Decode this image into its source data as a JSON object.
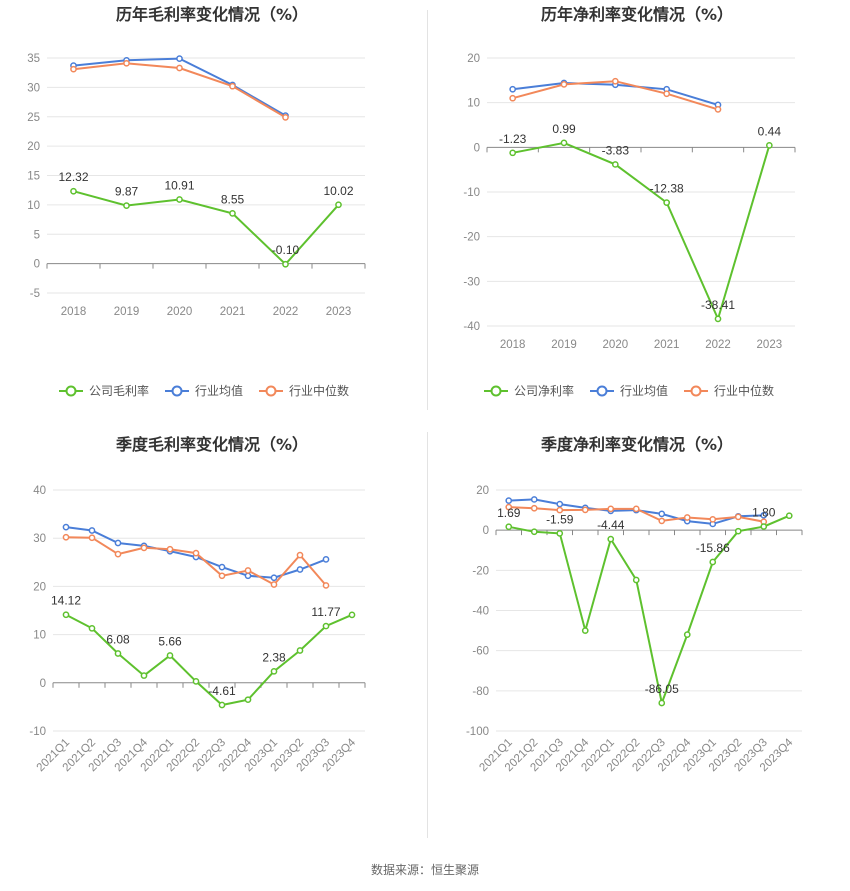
{
  "source": "数据来源：恒生聚源",
  "colors": {
    "company": "#5ec12e",
    "avg": "#4a7ed8",
    "median": "#f2885a"
  },
  "chart_data": [
    {
      "id": "annual-gross",
      "type": "line",
      "title": "历年毛利率变化情况（%）",
      "categories": [
        "2018",
        "2019",
        "2020",
        "2021",
        "2022",
        "2023"
      ],
      "ylim": [
        -5,
        35
      ],
      "yticks": [
        -5,
        0,
        5,
        10,
        15,
        20,
        25,
        30,
        35
      ],
      "rotate_x": false,
      "series": [
        {
          "name": "公司毛利率",
          "key": "company",
          "values": [
            12.32,
            9.87,
            10.91,
            8.55,
            -0.1,
            10.02
          ]
        },
        {
          "name": "行业均值",
          "key": "avg",
          "values": [
            33.7,
            34.6,
            34.9,
            30.4,
            25.2,
            null
          ]
        },
        {
          "name": "行业中位数",
          "key": "median",
          "values": [
            33.1,
            34.1,
            33.3,
            30.2,
            24.9,
            null
          ]
        }
      ],
      "labels": [
        "12.32",
        "9.87",
        "10.91",
        "8.55",
        "-0.10",
        "10.02"
      ]
    },
    {
      "id": "annual-net",
      "type": "line",
      "title": "历年净利率变化情况（%）",
      "categories": [
        "2018",
        "2019",
        "2020",
        "2021",
        "2022",
        "2023"
      ],
      "ylim": [
        -40,
        20
      ],
      "yticks": [
        -40,
        -30,
        -20,
        -10,
        0,
        10,
        20
      ],
      "rotate_x": false,
      "series": [
        {
          "name": "公司净利率",
          "key": "company",
          "values": [
            -1.23,
            0.99,
            -3.83,
            -12.38,
            -38.41,
            0.44
          ]
        },
        {
          "name": "行业均值",
          "key": "avg",
          "values": [
            13.0,
            14.4,
            14.0,
            13.0,
            9.5,
            null
          ]
        },
        {
          "name": "行业中位数",
          "key": "median",
          "values": [
            11.0,
            14.1,
            14.8,
            12.0,
            8.5,
            null
          ]
        }
      ],
      "labels": [
        "-1.23",
        "0.99",
        "-3.83",
        "-12.38",
        "-38.41",
        "0.44"
      ]
    },
    {
      "id": "quarterly-gross",
      "type": "line",
      "title": "季度毛利率变化情况（%）",
      "categories": [
        "2021Q1",
        "2021Q2",
        "2021Q3",
        "2021Q4",
        "2022Q1",
        "2022Q2",
        "2022Q3",
        "2022Q4",
        "2023Q1",
        "2023Q2",
        "2023Q3",
        "2023Q4"
      ],
      "ylim": [
        -10,
        40
      ],
      "yticks": [
        -10,
        0,
        10,
        20,
        30,
        40
      ],
      "rotate_x": true,
      "series": [
        {
          "name": "公司毛利率",
          "key": "company",
          "values": [
            14.12,
            11.3,
            6.08,
            1.5,
            5.66,
            0.3,
            -4.61,
            -3.5,
            2.38,
            6.7,
            11.77,
            14.1
          ]
        },
        {
          "name": "行业均值",
          "key": "avg",
          "values": [
            32.3,
            31.6,
            29.0,
            28.4,
            27.3,
            26.1,
            24.0,
            22.2,
            21.8,
            23.5,
            25.6,
            null
          ]
        },
        {
          "name": "行业中位数",
          "key": "median",
          "values": [
            30.2,
            30.1,
            26.7,
            28.0,
            27.7,
            26.9,
            22.2,
            23.3,
            20.4,
            26.5,
            20.2,
            null
          ]
        }
      ],
      "labels": [
        "14.12",
        "",
        "6.08",
        "",
        "5.66",
        "",
        "-4.61",
        "",
        "2.38",
        "",
        "11.77",
        ""
      ]
    },
    {
      "id": "quarterly-net",
      "type": "line",
      "title": "季度净利率变化情况（%）",
      "categories": [
        "2021Q1",
        "2021Q2",
        "2021Q3",
        "2021Q4",
        "2022Q1",
        "2022Q2",
        "2022Q3",
        "2022Q4",
        "2023Q1",
        "2023Q2",
        "2023Q3",
        "2023Q4"
      ],
      "ylim": [
        -100,
        20
      ],
      "yticks": [
        -100,
        -80,
        -60,
        -40,
        -20,
        0,
        20
      ],
      "rotate_x": true,
      "series": [
        {
          "name": "公司净利率",
          "key": "company",
          "values": [
            1.69,
            -0.8,
            -1.59,
            -50.0,
            -4.44,
            -24.8,
            -86.05,
            -52.0,
            -15.86,
            -0.5,
            1.8,
            7.2
          ]
        },
        {
          "name": "行业均值",
          "key": "avg",
          "values": [
            14.7,
            15.3,
            13.0,
            11.1,
            9.6,
            10.0,
            8.1,
            4.5,
            3.1,
            6.9,
            7.4,
            null
          ]
        },
        {
          "name": "行业中位数",
          "key": "median",
          "values": [
            11.5,
            10.9,
            10.0,
            10.1,
            10.6,
            10.6,
            4.6,
            6.3,
            5.4,
            6.6,
            4.2,
            null
          ]
        }
      ],
      "labels": [
        "1.69",
        "",
        "-1.59",
        "",
        "-4.44",
        "",
        "-86.05",
        "",
        "-15.86",
        "",
        "1.80",
        ""
      ]
    }
  ]
}
